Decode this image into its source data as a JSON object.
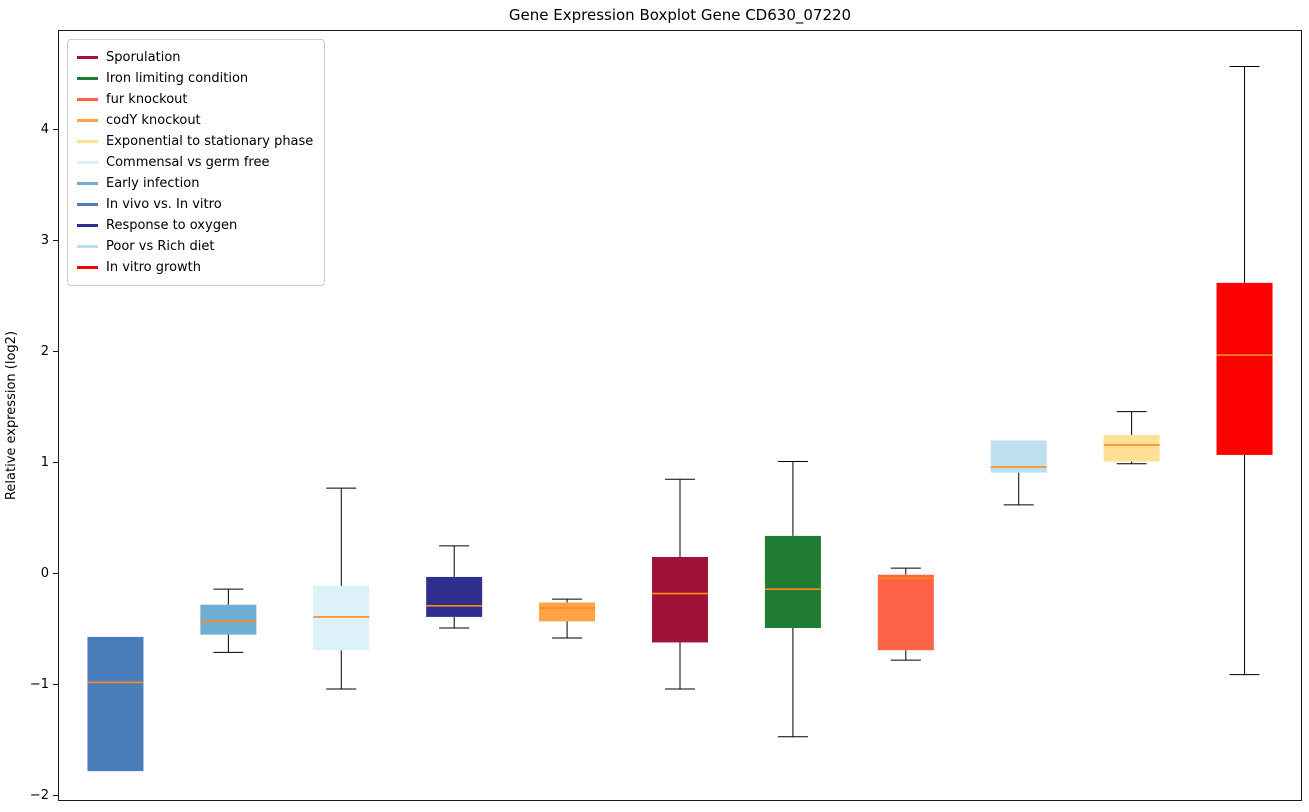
{
  "figure": {
    "title": "Gene Expression Boxplot Gene CD630_07220",
    "ylabel": "Relative expression (log2)"
  },
  "chart_data": {
    "type": "boxplot",
    "title": "Gene Expression Boxplot Gene CD630_07220",
    "xlabel": "",
    "ylabel": "Relative expression (log2)",
    "ylim": [
      -2.03,
      4.9
    ],
    "yticks": [
      -2,
      -1,
      0,
      1,
      2,
      3,
      4
    ],
    "grid": false,
    "legend_position": "upper-left",
    "median_color": "#ff8c1a",
    "whisker_color": "#000000",
    "legend": [
      {
        "label": "Sporulation",
        "color": "#a01238"
      },
      {
        "label": "Iron limiting condition",
        "color": "#207b33"
      },
      {
        "label": "fur knockout",
        "color": "#ff6347"
      },
      {
        "label": "codY knockout",
        "color": "#ffa347"
      },
      {
        "label": "Exponential to stationary phase",
        "color": "#ffe096"
      },
      {
        "label": "Commensal vs germ free",
        "color": "#ddf1f9"
      },
      {
        "label": "Early infection",
        "color": "#6fadd2"
      },
      {
        "label": "In vivo vs. In vitro",
        "color": "#4a7ebb"
      },
      {
        "label": "Response to oxygen",
        "color": "#2f2f8f"
      },
      {
        "label": "Poor vs Rich diet",
        "color": "#bde0f0"
      },
      {
        "label": "In vitro growth",
        "color": "#ff0000"
      }
    ],
    "boxes": [
      {
        "condition": "In vivo vs. In vitro",
        "color": "#4a7ebb",
        "whisker_low": -1.77,
        "q1": -1.77,
        "median": -0.97,
        "q3": -0.56,
        "whisker_high": -0.56
      },
      {
        "condition": "Early infection",
        "color": "#6fadd2",
        "whisker_low": -0.7,
        "q1": -0.54,
        "median": -0.42,
        "q3": -0.27,
        "whisker_high": -0.13
      },
      {
        "condition": "Commensal vs germ free",
        "color": "#ddf1f9",
        "whisker_low": -1.03,
        "q1": -0.68,
        "median": -0.38,
        "q3": -0.1,
        "whisker_high": 0.78
      },
      {
        "condition": "Response to oxygen",
        "color": "#2f2f8f",
        "whisker_low": -0.48,
        "q1": -0.38,
        "median": -0.28,
        "q3": -0.02,
        "whisker_high": 0.26
      },
      {
        "condition": "codY knockout",
        "color": "#ffa347",
        "whisker_low": -0.57,
        "q1": -0.42,
        "median": -0.3,
        "q3": -0.25,
        "whisker_high": -0.22
      },
      {
        "condition": "Sporulation",
        "color": "#a01238",
        "whisker_low": -1.03,
        "q1": -0.61,
        "median": -0.17,
        "q3": 0.16,
        "whisker_high": 0.86
      },
      {
        "condition": "Iron limiting condition",
        "color": "#207b33",
        "whisker_low": -1.46,
        "q1": -0.48,
        "median": -0.13,
        "q3": 0.35,
        "whisker_high": 1.02
      },
      {
        "condition": "fur knockout",
        "color": "#ff6347",
        "whisker_low": -0.77,
        "q1": -0.68,
        "median": -0.03,
        "q3": 0.0,
        "whisker_high": 0.06
      },
      {
        "condition": "Poor vs Rich diet",
        "color": "#bde0f0",
        "whisker_low": 0.63,
        "q1": 0.92,
        "median": 0.97,
        "q3": 1.21,
        "whisker_high": 1.21
      },
      {
        "condition": "Exponential to stationary phase",
        "color": "#ffe096",
        "whisker_low": 1.0,
        "q1": 1.02,
        "median": 1.17,
        "q3": 1.26,
        "whisker_high": 1.47
      },
      {
        "condition": "In vitro growth",
        "color": "#ff0000",
        "whisker_low": -0.9,
        "q1": 1.08,
        "median": 1.98,
        "q3": 2.63,
        "whisker_high": 4.58
      }
    ]
  }
}
